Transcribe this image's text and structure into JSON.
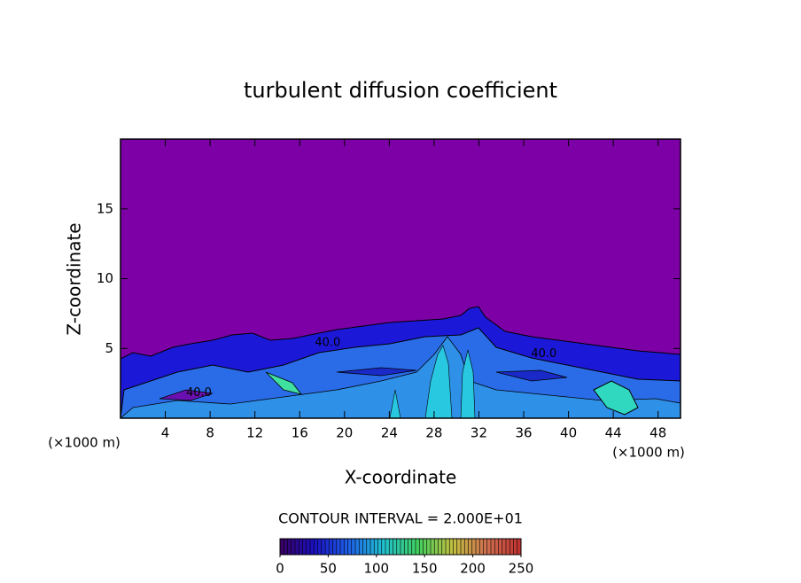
{
  "chart_data": {
    "type": "contour",
    "title": "turbulent diffusion coefficient",
    "x_label": "X-coordinate",
    "y_label": "Z-coordinate",
    "x_unit": "(×1000 m)",
    "y_unit": "(×1000 m)",
    "xlim": [
      0,
      50
    ],
    "ylim": [
      0,
      20
    ],
    "xticks": [
      4,
      8,
      12,
      16,
      20,
      24,
      28,
      32,
      36,
      40,
      44,
      48
    ],
    "yticks": [
      5,
      10,
      15
    ],
    "background_color": "#7d00a6",
    "contour_labels": [
      {
        "text": "40.0",
        "x": 18.5,
        "z": 5.4
      },
      {
        "text": "40.0",
        "x": 37.8,
        "z": 4.6
      },
      {
        "text": "40.0",
        "x": 7.0,
        "z": 1.8
      }
    ],
    "annotation": "CONTOUR INTERVAL = 2.000E+01",
    "colorbar": {
      "range": [
        0,
        250
      ],
      "ticks": [
        0,
        50,
        100,
        150,
        200,
        250
      ],
      "colors": [
        "#3a0060",
        "#1a10c0",
        "#1e60e8",
        "#20c0d0",
        "#40d060",
        "#c0c040",
        "#d07050",
        "#c03030"
      ]
    }
  }
}
